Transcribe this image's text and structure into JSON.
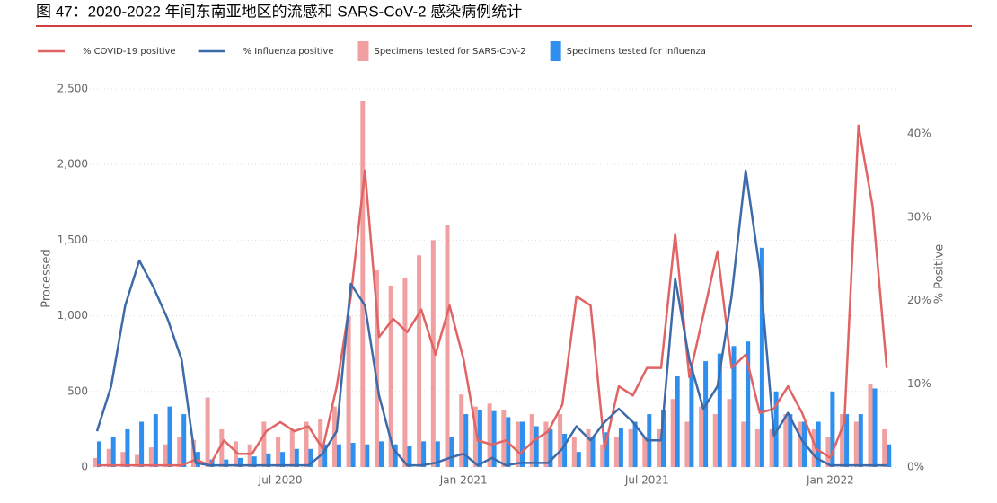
{
  "chart_data": {
    "type": "combo",
    "title": "图 47：2020-2022 年间东南亚地区的流感和 SARS-CoV-2 感染病例统计",
    "ylabel": "Processed",
    "y2label": "% Positive",
    "categories": [
      null,
      null,
      null,
      null,
      null,
      null,
      null,
      null,
      null,
      null,
      null,
      null,
      null,
      "Jul 2020",
      null,
      null,
      null,
      null,
      null,
      null,
      null,
      null,
      null,
      null,
      null,
      null,
      "Jan 2021",
      null,
      null,
      null,
      null,
      null,
      null,
      null,
      null,
      null,
      null,
      null,
      null,
      "Jul 2021",
      null,
      null,
      null,
      null,
      null,
      null,
      null,
      null,
      null,
      null,
      null,
      null,
      "Jan 2022",
      null,
      null,
      null,
      null
    ],
    "ylim": [
      0,
      2500
    ],
    "yticks": [
      0,
      500,
      {
        "value": 1000,
        "label": "1,000"
      },
      {
        "value": 1500,
        "label": "1,500"
      },
      {
        "value": 2000,
        "label": "2,000"
      },
      {
        "value": 2500,
        "label": "2,500"
      }
    ],
    "y2lim": [
      0,
      45.4
    ],
    "y2ticks": [
      {
        "value": 0,
        "label": "0%"
      },
      {
        "value": 10,
        "label": "10%"
      },
      {
        "value": 20,
        "label": "20%"
      },
      {
        "value": 30,
        "label": "30%"
      },
      {
        "value": 40,
        "label": "40%"
      }
    ],
    "grid": true,
    "series": [
      {
        "name": "% COVID-19 positive",
        "type": "line",
        "axis": "y2",
        "color": "#e06464",
        "values": [
          0.2,
          0.2,
          0.2,
          0.2,
          0.2,
          0.2,
          0.2,
          0.9,
          0.2,
          3.2,
          1.6,
          1.6,
          4.3,
          5.4,
          4.3,
          4.9,
          2.2,
          9.7,
          20.5,
          35.6,
          15.6,
          17.8,
          16.2,
          18.9,
          13.5,
          19.4,
          12.9,
          3.2,
          2.7,
          3.2,
          1.6,
          3.2,
          4.3,
          7.5,
          20.5,
          19.4,
          2.2,
          9.7,
          8.6,
          11.9,
          11.9,
          28,
          10.8,
          18.3,
          25.9,
          11.9,
          13.5,
          6.5,
          7,
          9.7,
          6.5,
          2.2,
          1.1,
          5.4,
          41,
          31.3,
          11.9
        ]
      },
      {
        "name": "% Influenza positive",
        "type": "line",
        "axis": "y2",
        "color": "#3d6aa8",
        "values": [
          4.3,
          9.7,
          19.4,
          24.8,
          21.6,
          17.8,
          12.9,
          0.5,
          0.2,
          0.2,
          0.2,
          0.2,
          0.2,
          0.2,
          0.2,
          0.2,
          1.6,
          4.3,
          22,
          19.4,
          8.6,
          2.2,
          0.2,
          0.2,
          0.5,
          1.1,
          1.6,
          0.2,
          1.1,
          0.2,
          0.5,
          0.5,
          0.5,
          2.2,
          4.9,
          3.2,
          5.4,
          7,
          5.4,
          3.2,
          3.2,
          22.6,
          12.9,
          7,
          9.7,
          20.5,
          35.6,
          23.7,
          3.8,
          6.5,
          3.2,
          1.1,
          0.2,
          0.2,
          0.2,
          0.2,
          0.2
        ]
      },
      {
        "name": "Specimens tested for SARS-CoV-2",
        "type": "bar",
        "color": "#f0a0a0",
        "values": [
          60,
          120,
          100,
          80,
          130,
          150,
          200,
          180,
          460,
          250,
          170,
          150,
          300,
          200,
          250,
          300,
          320,
          400,
          1000,
          2420,
          1300,
          1200,
          1250,
          1400,
          1500,
          1600,
          480,
          400,
          420,
          380,
          300,
          350,
          300,
          350,
          200,
          250,
          150,
          200,
          250,
          200,
          250,
          450,
          300,
          400,
          350,
          450,
          300,
          250,
          250,
          350,
          300,
          250,
          200,
          350,
          300,
          550,
          250
        ]
      },
      {
        "name": "Specimens tested for influenza",
        "type": "bar",
        "color": "#2e8fef",
        "values": [
          170,
          200,
          250,
          300,
          350,
          400,
          350,
          100,
          50,
          50,
          60,
          70,
          90,
          100,
          120,
          120,
          150,
          150,
          160,
          150,
          170,
          150,
          140,
          170,
          170,
          200,
          350,
          380,
          370,
          330,
          300,
          270,
          250,
          220,
          100,
          200,
          230,
          260,
          300,
          350,
          380,
          600,
          650,
          700,
          750,
          800,
          830,
          1450,
          500,
          350,
          300,
          300,
          500,
          350,
          350,
          520,
          150
        ]
      }
    ]
  }
}
